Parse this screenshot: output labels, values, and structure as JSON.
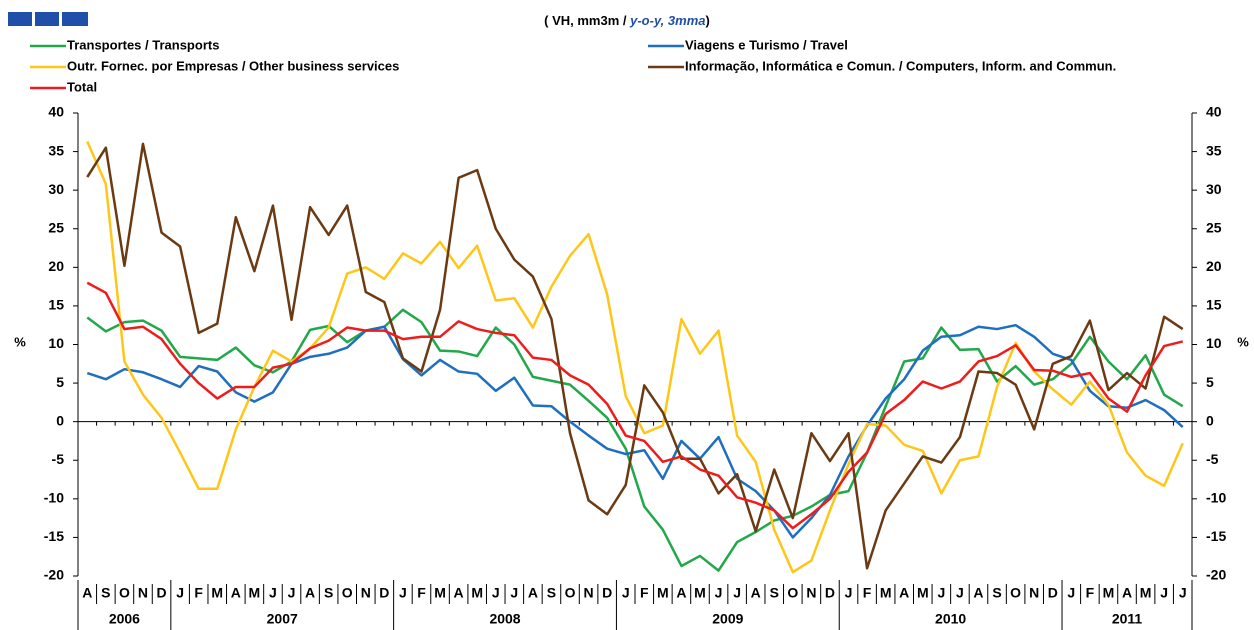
{
  "chart_data": {
    "type": "line",
    "subtitle": [
      "( VH, mm3m / ",
      "y-o-y, 3mma",
      ")"
    ],
    "ylabel": "%",
    "categories": [
      "A",
      "S",
      "O",
      "N",
      "D",
      "J",
      "F",
      "M",
      "A",
      "M",
      "J",
      "J",
      "A",
      "S",
      "O",
      "N",
      "D",
      "J",
      "F",
      "M",
      "A",
      "M",
      "J",
      "J",
      "A",
      "S",
      "O",
      "N",
      "D",
      "J",
      "F",
      "M",
      "A",
      "M",
      "J",
      "J",
      "A",
      "S",
      "O",
      "N",
      "D",
      "J",
      "F",
      "M",
      "A",
      "M",
      "J",
      "J",
      "A",
      "S",
      "O",
      "N",
      "D",
      "J",
      "F",
      "M",
      "A",
      "M",
      "J",
      "J"
    ],
    "years": [
      "2006",
      "2007",
      "2008",
      "2009",
      "2010",
      "2011"
    ],
    "ylim": [
      -20,
      40
    ],
    "yticks": [
      -20,
      -15,
      -10,
      -5,
      0,
      5,
      10,
      15,
      20,
      25,
      30,
      35,
      40
    ],
    "series": [
      {
        "name": "Transportes / Transports",
        "color": "#22a84a",
        "values": [
          13.5,
          11.7,
          12.9,
          13.1,
          11.8,
          8.4,
          8.2,
          8,
          9.6,
          7.3,
          6.4,
          7.8,
          11.9,
          12.4,
          10.3,
          11.8,
          12.3,
          14.5,
          12.9,
          9.2,
          9.1,
          8.5,
          12.2,
          10,
          5.8,
          5.3,
          4.8,
          2.7,
          0.5,
          -3.5,
          -11,
          -14,
          -18.7,
          -17.4,
          -19.3,
          -15.6,
          -14.3,
          -12.8,
          -12.2,
          -11,
          -9.5,
          -9,
          -4,
          2,
          7.8,
          8.2,
          12.2,
          9.3,
          9.4,
          5.2,
          7.2,
          4.8,
          5.5,
          7.5,
          11,
          7.8,
          5.5,
          8.6,
          3.5,
          2
        ]
      },
      {
        "name": "Viagens e Turismo / Travel",
        "color": "#1f6fbf",
        "values": [
          6.3,
          5.5,
          6.8,
          6.4,
          5.5,
          4.5,
          7.2,
          6.5,
          3.8,
          2.6,
          3.8,
          7.5,
          8.4,
          8.8,
          9.6,
          11.8,
          12.3,
          8.1,
          6,
          8,
          6.5,
          6.2,
          4,
          5.7,
          2.1,
          2,
          0,
          -1.8,
          -3.5,
          -4.2,
          -3.7,
          -7.4,
          -2.5,
          -4.8,
          -2,
          -7.4,
          -9,
          -11.5,
          -15,
          -12.5,
          -9.5,
          -4.5,
          -0.5,
          3,
          5.5,
          9.2,
          11,
          11.2,
          12.3,
          12,
          12.5,
          11,
          8.8,
          8,
          4,
          2,
          1.8,
          2.8,
          1.5,
          -0.7
        ]
      },
      {
        "name": "Outr. Fornec. por Empresas / Other business services",
        "color": "#ffc61a",
        "values": [
          36.3,
          30.8,
          7.8,
          3.5,
          0.5,
          -4,
          -8.7,
          -8.7,
          -1,
          4.5,
          9.2,
          7.8,
          9.5,
          12.2,
          19.2,
          20,
          18.5,
          21.8,
          20.5,
          23.3,
          19.9,
          22.8,
          15.7,
          16,
          12.2,
          17.5,
          21.5,
          24.3,
          16.5,
          3.3,
          -1.5,
          -0.5,
          13.3,
          8.8,
          11.8,
          -1.8,
          -5.2,
          -14,
          -19.5,
          -18,
          -11.5,
          -5.5,
          -0.3,
          -0.5,
          -3,
          -3.8,
          -9.3,
          -5,
          -4.5,
          4.5,
          10.2,
          6.5,
          4.2,
          2.2,
          5.2,
          2.2,
          -4,
          -7,
          -8.3,
          -2.8
        ]
      },
      {
        "name": "Informação, Informática e Comun. / Computers, Inform. and Commun.",
        "color": "#6b3a13",
        "values": [
          31.7,
          35.5,
          20.2,
          36,
          24.5,
          22.7,
          11.5,
          12.7,
          26.5,
          19.5,
          28,
          13.2,
          27.8,
          24.2,
          28,
          16.8,
          15.5,
          8.2,
          6.5,
          14.5,
          31.6,
          32.6,
          25,
          21,
          18.8,
          13.3,
          -1.5,
          -10.2,
          -12,
          -8.2,
          4.7,
          1.2,
          -4.8,
          -4.8,
          -9.3,
          -6.8,
          -14.2,
          -6.2,
          -12.5,
          -1.5,
          -5.1,
          -1.5,
          -19,
          -11.5,
          -8,
          -4.5,
          -5.3,
          -2,
          6.5,
          6.3,
          4.8,
          -1,
          7.5,
          8.5,
          13.1,
          4.1,
          6.3,
          4.3,
          13.6,
          12
        ]
      },
      {
        "name": "Total",
        "color": "#ee1c1c",
        "values": [
          18,
          16.7,
          12,
          12.3,
          10.7,
          7.5,
          5,
          3,
          4.5,
          4.5,
          7,
          7.5,
          9.5,
          10.5,
          12.2,
          11.8,
          11.8,
          10.7,
          11,
          11,
          13,
          12,
          11.5,
          11.2,
          8.3,
          8,
          6,
          4.8,
          2.3,
          -1.8,
          -2.5,
          -5.2,
          -4.5,
          -6.2,
          -7,
          -9.8,
          -10.5,
          -11.5,
          -13.8,
          -12,
          -10,
          -6.5,
          -4,
          1,
          2.8,
          5.2,
          4.3,
          5.2,
          7.8,
          8.5,
          9.9,
          6.7,
          6.6,
          5.8,
          6.3,
          3,
          1.3,
          6,
          9.8,
          10.4
        ]
      }
    ]
  }
}
